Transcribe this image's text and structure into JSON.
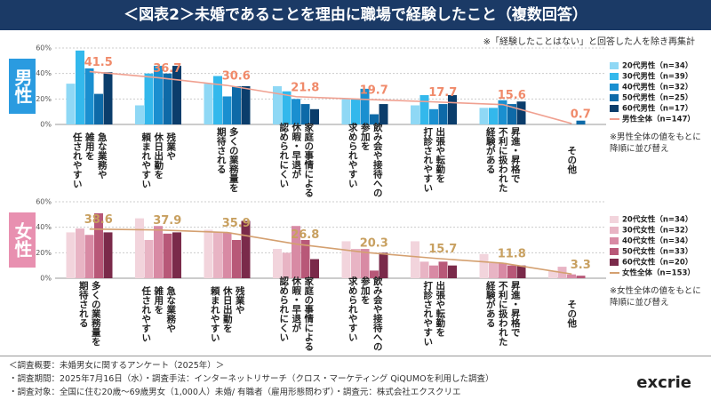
{
  "title": "＜図表2＞未婚であることを理由に職場で経験したこと（複数回答）",
  "note": "※「経験したことはない」と回答した人を除き再集計",
  "chart_data": [
    {
      "type": "bar",
      "panel_label": "男性",
      "note": "※男性全体の値をもとに\n降順に並び替え",
      "categories": [
        "急な業務や\n雑用を\n任されやすい",
        "残業や\n休日出勤を\n頼まれやすい",
        "多くの業務量を\n期待される",
        "家庭の事情による\n休暇・早退が\n認められにくい",
        "飲み会や接待への\n参加を\n求められやすい",
        "出張や転勤を\n打診されやすい",
        "昇進・昇格で\n不利に扱われた\n経験がある",
        "その他"
      ],
      "series": [
        {
          "name": "20代男性（n=34）",
          "color": "#8fd8f5",
          "values": [
            32,
            15,
            32,
            30,
            20,
            15,
            13,
            0
          ]
        },
        {
          "name": "30代男性（n=39）",
          "color": "#33b8ec",
          "values": [
            58,
            40,
            38,
            26,
            20,
            23,
            13,
            0
          ]
        },
        {
          "name": "40代男性（n=32）",
          "color": "#1a8fd0",
          "values": [
            44,
            46,
            22,
            20,
            28,
            12,
            19,
            0
          ]
        },
        {
          "name": "50代男性（n=25）",
          "color": "#0e6aa8",
          "values": [
            24,
            40,
            30,
            16,
            8,
            16,
            16,
            3
          ]
        },
        {
          "name": "60代男性（n=17）",
          "color": "#0b3d6b",
          "values": [
            41,
            46,
            30,
            12,
            16,
            23,
            18,
            0
          ]
        }
      ],
      "total": {
        "name": "男性全体（n=147）",
        "color": "#f0a090",
        "label_color": "#f08a6a",
        "values": [
          41.5,
          36.7,
          30.6,
          21.8,
          19.7,
          17.7,
          15.6,
          0.7
        ]
      },
      "ylim": [
        0,
        60
      ],
      "yticks": [
        {
          "value": 0,
          "label": "0%"
        },
        {
          "value": 20,
          "label": "20%"
        },
        {
          "value": 40,
          "label": "40%"
        },
        {
          "value": 60,
          "label": "60%"
        }
      ],
      "grid": true,
      "panel_color": "#2a9be0"
    },
    {
      "type": "bar",
      "panel_label": "女性",
      "note": "※女性全体の値をもとに\n降順に並び替え",
      "categories": [
        "多くの業務量を\n期待される",
        "急な業務や\n雑用を\n任されやすい",
        "残業や\n休日出勤を\n頼まれやすい",
        "家庭の事情による\n休暇・早退が\n認められにくい",
        "飲み会や接待への\n参加を\n求められやすい",
        "出張や転勤を\n打診されやすい",
        "昇進・昇格で\n不利に扱われた\n経験がある",
        "その他"
      ],
      "series": [
        {
          "name": "20代女性（n=34）",
          "color": "#f2d4dc",
          "values": [
            36,
            47,
            38,
            23,
            29,
            29,
            19,
            6
          ]
        },
        {
          "name": "30代女性（n=32）",
          "color": "#e8b4c4",
          "values": [
            39,
            30,
            36,
            20,
            23,
            13,
            12,
            9
          ]
        },
        {
          "name": "40代女性（n=34）",
          "color": "#d88aa4",
          "values": [
            34,
            41,
            36,
            41,
            23,
            10,
            12,
            3
          ]
        },
        {
          "name": "50代女性（n=33）",
          "color": "#b85878",
          "values": [
            51,
            35,
            30,
            30,
            6,
            13,
            10,
            2
          ]
        },
        {
          "name": "60代女性（n=20）",
          "color": "#7a2a4a",
          "values": [
            36,
            36,
            45,
            15,
            20,
            10,
            10,
            0
          ]
        }
      ],
      "total": {
        "name": "女性全体（n=153）",
        "color": "#d4a070",
        "label_color": "#c8a060",
        "values": [
          38.6,
          37.9,
          35.9,
          26.8,
          20.3,
          15.7,
          11.8,
          3.3
        ]
      },
      "ylim": [
        0,
        60
      ],
      "yticks": [
        {
          "value": 0,
          "label": "0%"
        },
        {
          "value": 20,
          "label": "20%"
        },
        {
          "value": 40,
          "label": "40%"
        },
        {
          "value": 60,
          "label": "60%"
        }
      ],
      "grid": true,
      "panel_color": "#e890b0"
    }
  ],
  "footer": [
    "＜調査概要：未婚男女に関するアンケート（2025年）＞",
    "・調査期間：2025年7月16日（水）・調査手法：インターネットリサーチ（クロス・マーケティング QiQUMOを利用した調査）",
    "・調査対象：全国に住む20歳～69歳男女（1,000人）未婚/ 有職者（雇用形態問わず）・調査元：株式会社エクスクリエ"
  ],
  "logo": "excrie"
}
